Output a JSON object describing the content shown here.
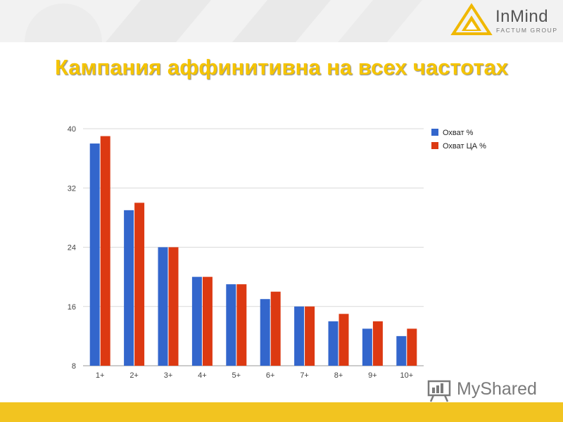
{
  "header": {
    "brand_name": "InMind",
    "brand_sub": "FACTUM GROUP"
  },
  "title": "Кампания аффинитивна на всех частотах",
  "watermark": "MyShared",
  "colors": {
    "series_1": "#3366cc",
    "series_2": "#dc3912",
    "title": "#f5c400",
    "footer": "#f2c420",
    "logo_accent": "#f0b800"
  },
  "chart_data": {
    "type": "bar",
    "categories": [
      "1+",
      "2+",
      "3+",
      "4+",
      "5+",
      "6+",
      "7+",
      "8+",
      "9+",
      "10+"
    ],
    "series": [
      {
        "name": "Охват %",
        "values": [
          38,
          29,
          24,
          20,
          19,
          17,
          16,
          14,
          13,
          12
        ]
      },
      {
        "name": "Охват ЦА %",
        "values": [
          39,
          30,
          24,
          20,
          19,
          18,
          16,
          15,
          14,
          13
        ]
      }
    ],
    "ylim": [
      8,
      40
    ],
    "yticks": [
      40,
      32,
      24,
      16,
      8
    ],
    "grid": true,
    "legend": "right"
  }
}
